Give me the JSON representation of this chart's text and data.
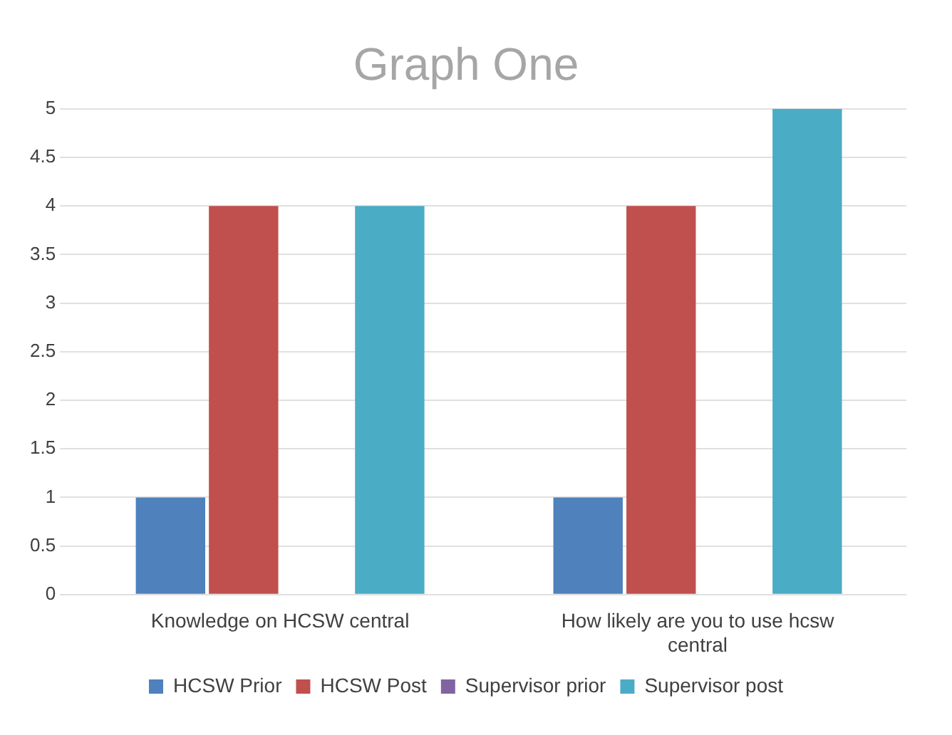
{
  "chart_data": {
    "type": "bar",
    "title": "Graph One",
    "categories": [
      "Knowledge on HCSW central",
      "How likely are you to use hcsw central"
    ],
    "series": [
      {
        "name": "HCSW Prior",
        "color": "#4f81bd",
        "values": [
          1,
          1
        ]
      },
      {
        "name": "HCSW Post",
        "color": "#c0504d",
        "values": [
          4,
          4
        ]
      },
      {
        "name": "Supervisor prior",
        "color": "#8064a2",
        "values": [
          0,
          0
        ]
      },
      {
        "name": "Supervisor post",
        "color": "#4bacc6",
        "values": [
          4,
          5
        ]
      }
    ],
    "ylim": [
      0,
      5
    ],
    "yticks": [
      0,
      0.5,
      1,
      1.5,
      2,
      2.5,
      3,
      3.5,
      4,
      4.5,
      5
    ],
    "grid": "y",
    "legend": "bottom"
  }
}
